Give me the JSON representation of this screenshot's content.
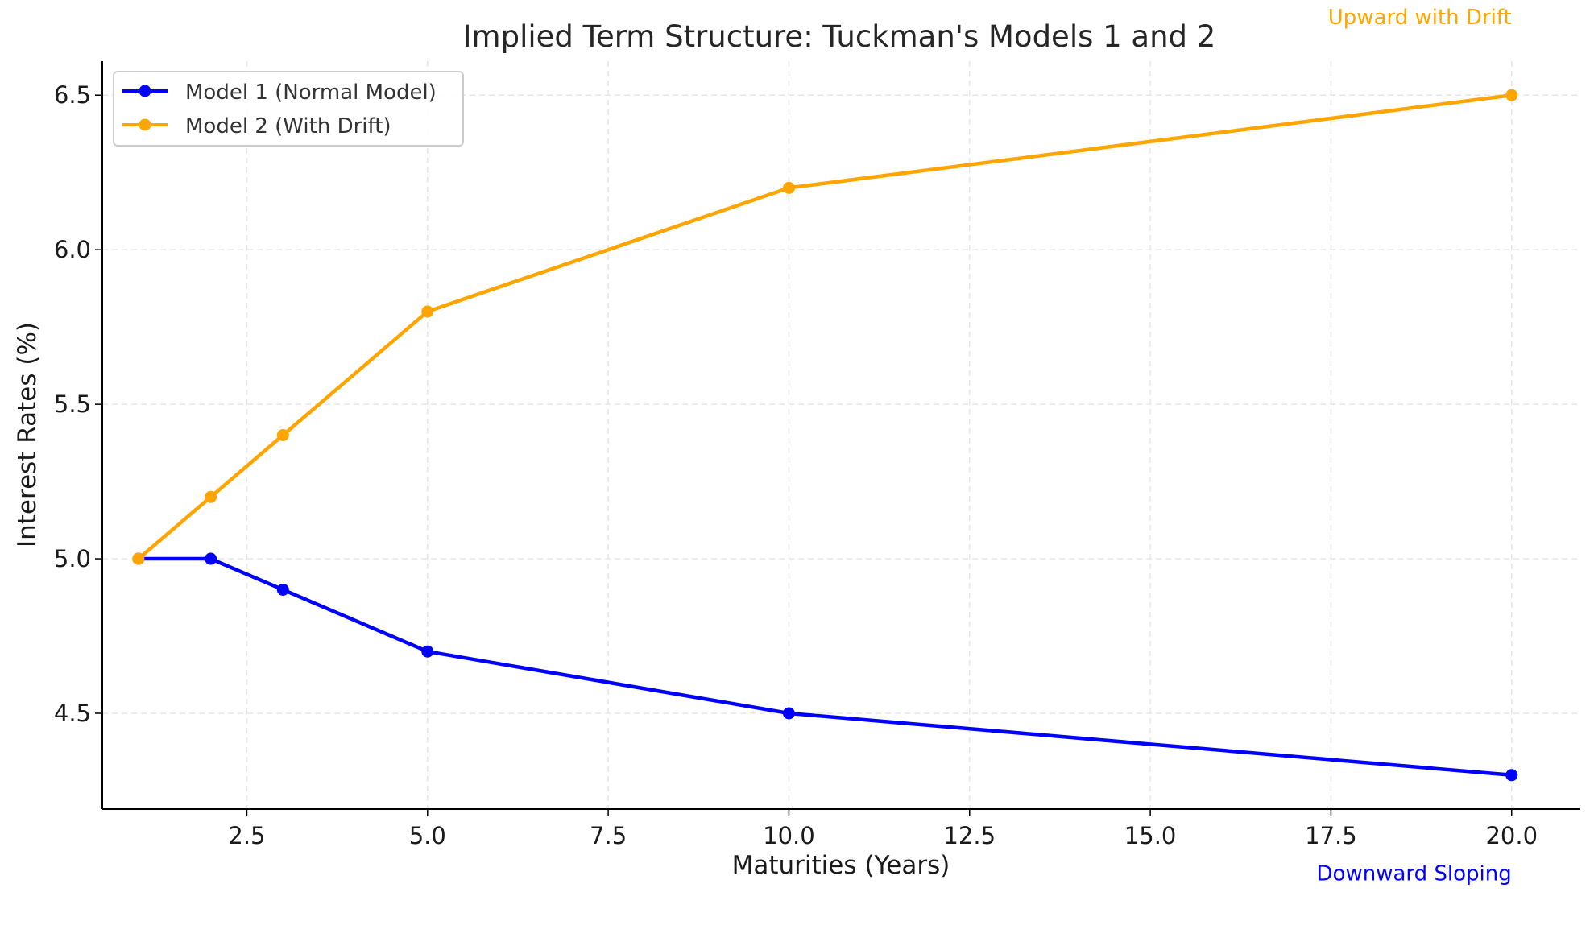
{
  "chart_data": {
    "type": "line",
    "title": "Implied Term Structure: Tuckman's Models 1 and 2",
    "xlabel": "Maturities (Years)",
    "ylabel": "Interest Rates (%)",
    "x": [
      1,
      2,
      3,
      5,
      10,
      20
    ],
    "xlim": [
      0.5,
      20.95
    ],
    "ylim": [
      4.19,
      6.61
    ],
    "xticks": [
      2.5,
      5.0,
      7.5,
      10.0,
      12.5,
      15.0,
      17.5,
      20.0
    ],
    "xtick_labels": [
      "2.5",
      "5.0",
      "7.5",
      "10.0",
      "12.5",
      "15.0",
      "17.5",
      "20.0"
    ],
    "yticks": [
      4.5,
      5.0,
      5.5,
      6.0,
      6.5
    ],
    "ytick_labels": [
      "4.5",
      "5.0",
      "5.5",
      "6.0",
      "6.5"
    ],
    "grid": true,
    "legend_position": "top-left",
    "series": [
      {
        "name": "Model 1 (Normal Model)",
        "color": "#0000ff",
        "values": [
          5.0,
          5.0,
          4.9,
          4.7,
          4.5,
          4.3
        ]
      },
      {
        "name": "Model 2 (With Drift)",
        "color": "#ffa500",
        "values": [
          5.0,
          5.2,
          5.4,
          5.8,
          6.2,
          6.5
        ]
      }
    ],
    "annotations": [
      {
        "text": "Upward with Drift",
        "x": 20,
        "y": 6.73,
        "color": "#ffa500"
      },
      {
        "text": "Downward Sloping",
        "x": 20,
        "y": 3.96,
        "color": "#0000ff"
      }
    ]
  }
}
